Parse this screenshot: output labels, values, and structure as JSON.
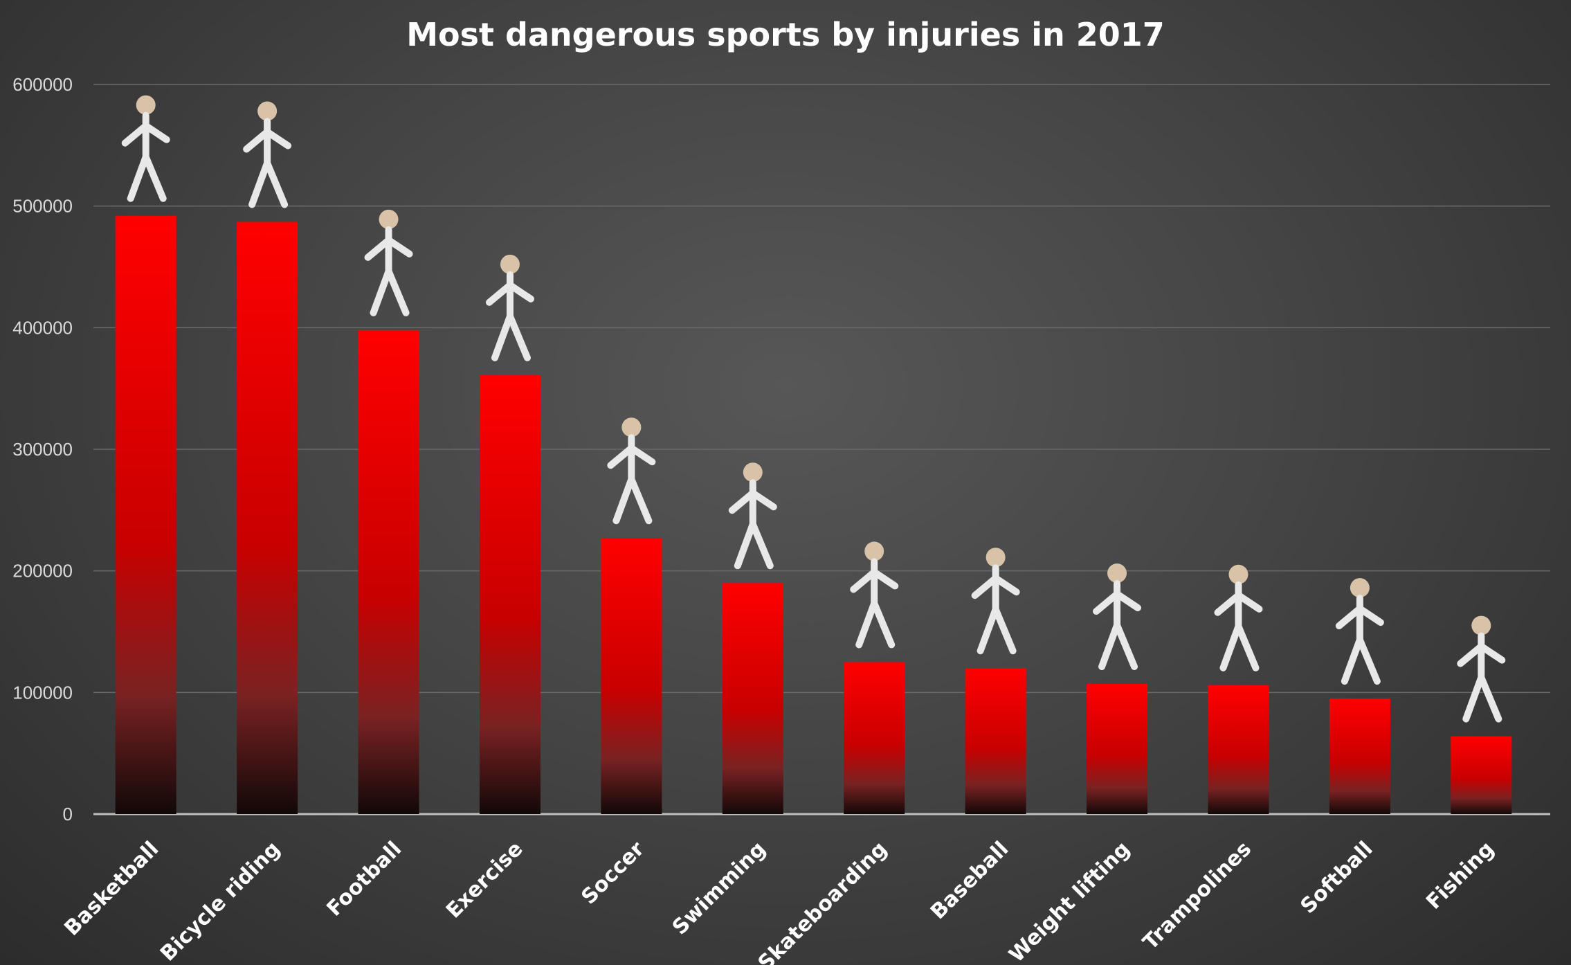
{
  "chart_data": {
    "type": "bar",
    "title": "Most dangerous sports by injuries in 2017",
    "xlabel": "",
    "ylabel": "",
    "categories": [
      "Basketball",
      "Bicycle riding",
      "Football",
      "Exercise",
      "Soccer",
      "Swimming",
      "Skateboarding",
      "Baseball",
      "Weight lifting",
      "Trampolines",
      "Softball",
      "Fishing"
    ],
    "values": [
      492000,
      487000,
      398000,
      361000,
      227000,
      190000,
      125000,
      120000,
      107000,
      106000,
      95000,
      64000
    ],
    "ylim": [
      0,
      600000
    ],
    "yticks": [
      "0",
      "100000",
      "200000",
      "300000",
      "400000",
      "500000",
      "600000"
    ],
    "grid": true,
    "legend": "none",
    "colors": {
      "bar_top": "#ff0000",
      "bar_bottom": "#140808",
      "grid": "#6a6a6a",
      "axis": "#bfbfbf"
    },
    "annotations": "photo of athlete above each bar"
  }
}
